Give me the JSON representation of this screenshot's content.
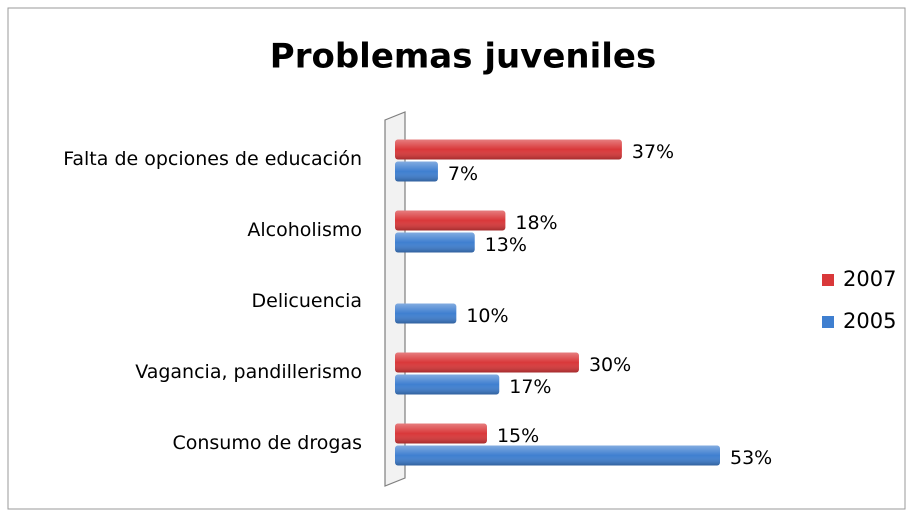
{
  "chart_data": {
    "type": "bar",
    "orientation": "horizontal",
    "title": "Problemas juveniles",
    "categories": [
      "Falta de opciones de educación",
      "Alcoholismo",
      "Delicuencia",
      "Vagancia, pandillerismo",
      "Consumo de drogas"
    ],
    "series": [
      {
        "name": "2007",
        "color": "#d9383a",
        "values": [
          37,
          18,
          null,
          30,
          15
        ],
        "value_labels": [
          "37%",
          "18%",
          null,
          "30%",
          "15%"
        ]
      },
      {
        "name": "2005",
        "color": "#3f7fd0",
        "values": [
          7,
          13,
          10,
          17,
          53
        ],
        "value_labels": [
          "7%",
          "13%",
          "10%",
          "17%",
          "53%"
        ]
      }
    ],
    "legend": "right"
  }
}
